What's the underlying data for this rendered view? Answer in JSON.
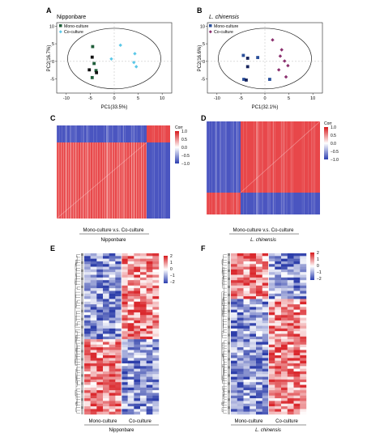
{
  "panels": [
    {
      "letter": "A"
    },
    {
      "letter": "B"
    },
    {
      "letter": "C"
    },
    {
      "letter": "D"
    },
    {
      "letter": "E"
    },
    {
      "letter": "F"
    }
  ],
  "colors": {
    "mono_dark": "#1f5e3a",
    "mono_black": "#111111",
    "co_light": "#5bc8e8",
    "lc_blue": "#2a4f9a",
    "lc_navy": "#16235c",
    "lc_purple": "#8a2f6e",
    "heat_low": "#2b3fb0",
    "heat_mid": "#ffffff",
    "heat_high": "#e3272b"
  },
  "chart_data": [
    {
      "id": "A",
      "type": "scatter",
      "title": "Nipponbare",
      "xlabel": "PC1(33.5%)",
      "ylabel": "PC2(16.7%)",
      "xlim": [
        -12,
        12
      ],
      "ylim": [
        -9,
        11
      ],
      "xticks": [
        -10,
        -5,
        0,
        5,
        10
      ],
      "yticks": [
        -5,
        0,
        5,
        10
      ],
      "legend": "top-left",
      "series": [
        {
          "name": "Mono-culture",
          "marker": "square",
          "points": [
            [
              -4.5,
              4.2
            ],
            [
              -4.6,
              1.2
            ],
            [
              -4.2,
              -0.6
            ],
            [
              -5.2,
              -2.4
            ],
            [
              -3.8,
              -2.6
            ],
            [
              -3.7,
              -3.2
            ],
            [
              -4.6,
              -4.6
            ]
          ]
        },
        {
          "name": "Co-culture",
          "marker": "diamond",
          "points": [
            [
              1.3,
              4.6
            ],
            [
              -0.6,
              0.7
            ],
            [
              4.3,
              2.2
            ],
            [
              4.1,
              -0.3
            ],
            [
              4.6,
              -1.5
            ]
          ]
        }
      ]
    },
    {
      "id": "B",
      "type": "scatter",
      "title": "L. chinensis",
      "xlabel": "PC1(32.1%)",
      "ylabel": "PC2(16.6%)",
      "xlim": [
        -12,
        12
      ],
      "ylim": [
        -9,
        11
      ],
      "xticks": [
        -10,
        -5,
        0,
        5,
        10
      ],
      "yticks": [
        -5,
        0,
        5,
        10
      ],
      "legend": "top-left",
      "series": [
        {
          "name": "Mono-culture",
          "marker": "square",
          "points": [
            [
              -4.5,
              1.7
            ],
            [
              -3.6,
              0.9
            ],
            [
              -1.5,
              1.1
            ],
            [
              -3.6,
              -1.5
            ],
            [
              -4.4,
              -5.1
            ],
            [
              -3.9,
              -5.3
            ],
            [
              1.0,
              -5.1
            ]
          ]
        },
        {
          "name": "Co-culture",
          "marker": "diamond",
          "points": [
            [
              1.6,
              6.1
            ],
            [
              3.5,
              3.3
            ],
            [
              3.2,
              1.5
            ],
            [
              4.1,
              0.1
            ],
            [
              4.8,
              -1.2
            ],
            [
              2.9,
              -2.4
            ],
            [
              4.4,
              -4.4
            ]
          ]
        }
      ]
    },
    {
      "id": "C",
      "type": "heatmap",
      "colorbar_title": "Corr",
      "colorbar_ticks": [
        "1.0",
        "0.5",
        "0.0",
        "−0.5",
        "−1.0"
      ],
      "xlabel": "Mono-culture  v.s.  Co-culture",
      "group_label": "Nipponbare"
    },
    {
      "id": "D",
      "type": "heatmap",
      "colorbar_title": "Corr",
      "colorbar_ticks": [
        "1.0",
        "0.5",
        "0.0",
        "−0.5",
        "−1.0"
      ],
      "xlabel": "Mono-culture  v.s.  Co-culture",
      "group_label": "L. chinensis"
    },
    {
      "id": "E",
      "type": "heatmap",
      "colorbar_ticks": [
        "2",
        "1",
        "0",
        "−1",
        "−2"
      ],
      "group_labels": [
        "Mono-culture",
        "Co-culture"
      ],
      "sample_label": "Nipponbare"
    },
    {
      "id": "F",
      "type": "heatmap",
      "colorbar_ticks": [
        "2",
        "1",
        "0",
        "−1",
        "−2"
      ],
      "group_labels": [
        "Mono-culture",
        "Co-culture"
      ],
      "sample_label": "L. chinensis"
    }
  ]
}
